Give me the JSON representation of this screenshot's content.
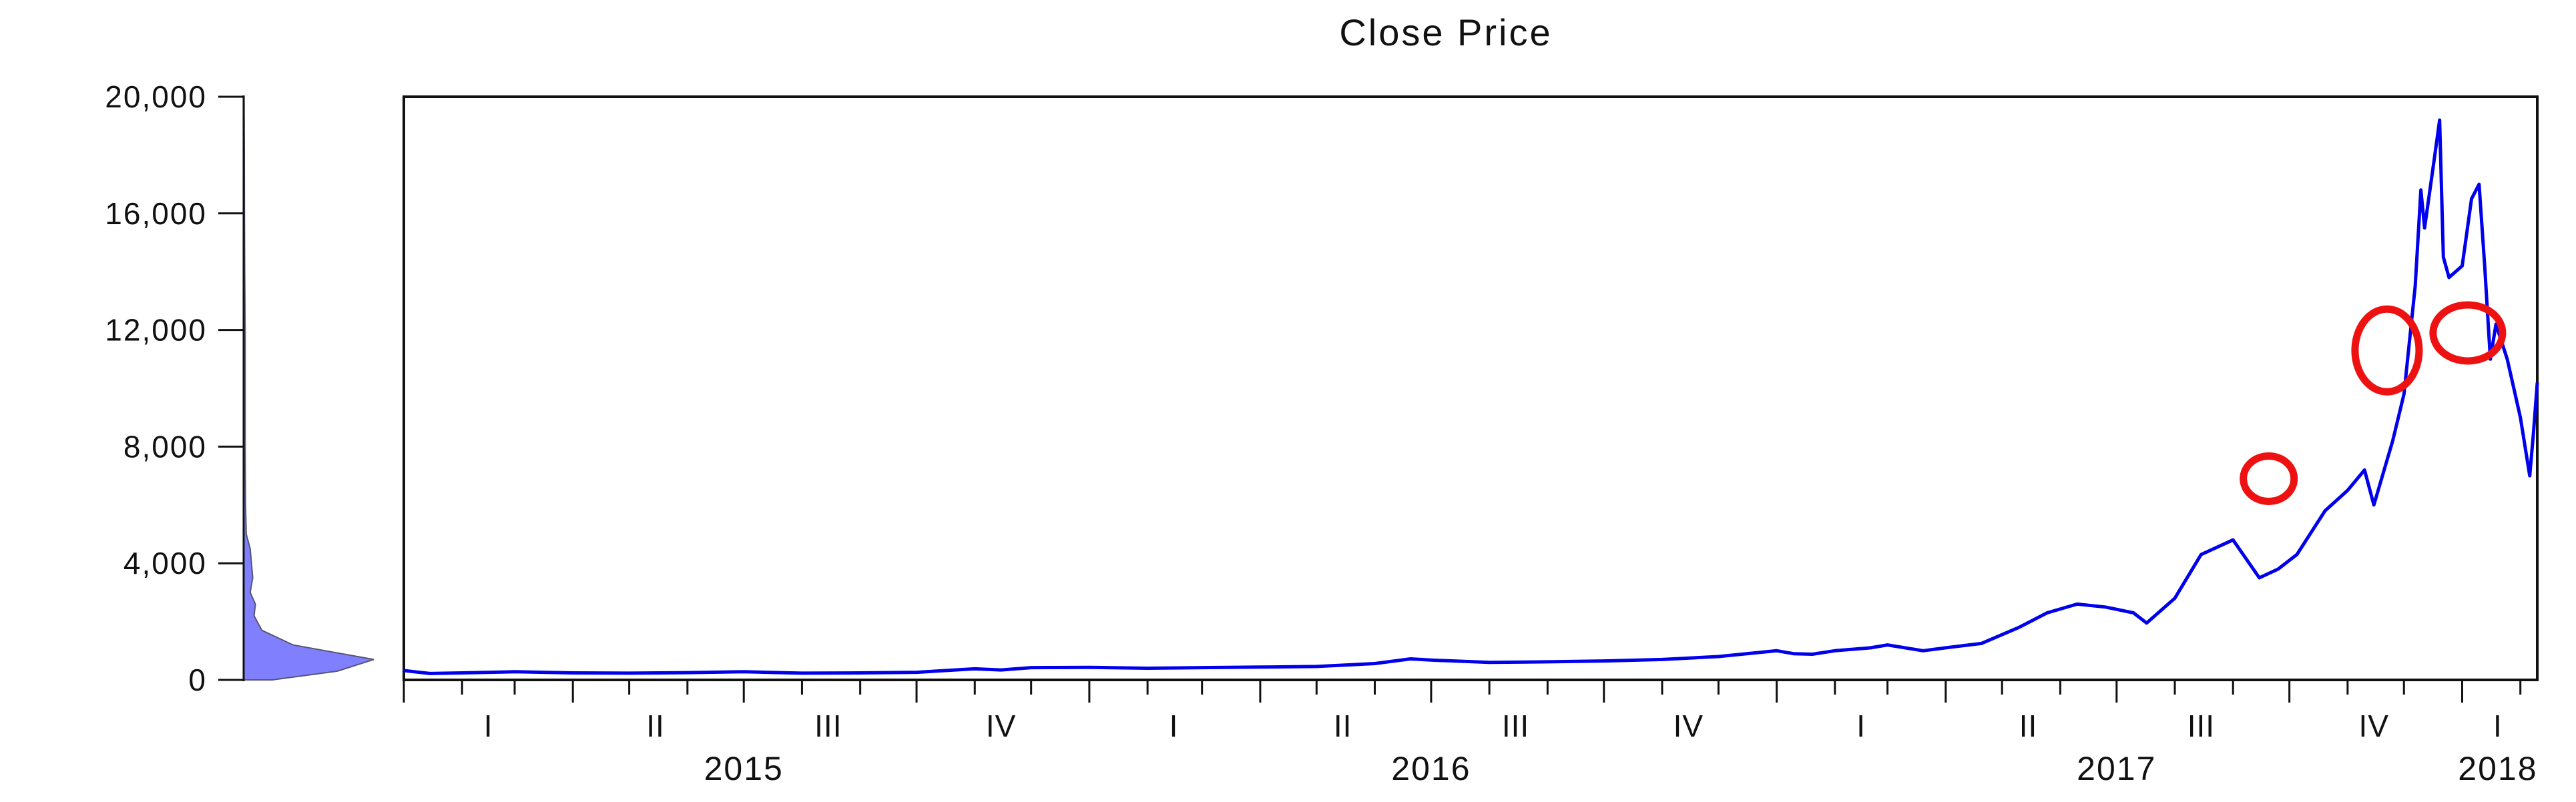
{
  "chart_data": {
    "type": "line",
    "title": "Close Price",
    "xlabel": "",
    "ylabel": "",
    "ylim": [
      0,
      20000
    ],
    "y_ticks": [
      {
        "value": 0,
        "label": "0"
      },
      {
        "value": 4000,
        "label": "4,000"
      },
      {
        "value": 8000,
        "label": "8,000"
      },
      {
        "value": 12000,
        "label": "12,000"
      },
      {
        "value": 16000,
        "label": "16,000"
      },
      {
        "value": 20000,
        "label": "20,000"
      }
    ],
    "xlim": [
      "2015-01-01",
      "2018-02-10"
    ],
    "quarter_labels": [
      {
        "label": "I",
        "date": "2015-02-15"
      },
      {
        "label": "II",
        "date": "2015-05-15"
      },
      {
        "label": "III",
        "date": "2015-08-15"
      },
      {
        "label": "IV",
        "date": "2015-11-15"
      },
      {
        "label": "I",
        "date": "2016-02-15"
      },
      {
        "label": "II",
        "date": "2016-05-15"
      },
      {
        "label": "III",
        "date": "2016-08-15"
      },
      {
        "label": "IV",
        "date": "2016-11-15"
      },
      {
        "label": "I",
        "date": "2017-02-15"
      },
      {
        "label": "II",
        "date": "2017-05-15"
      },
      {
        "label": "III",
        "date": "2017-08-15"
      },
      {
        "label": "IV",
        "date": "2017-11-15"
      },
      {
        "label": "I",
        "date": "2018-01-20"
      }
    ],
    "year_labels": [
      {
        "label": "2015",
        "date": "2015-07-01"
      },
      {
        "label": "2016",
        "date": "2016-07-01"
      },
      {
        "label": "2017",
        "date": "2017-07-01"
      },
      {
        "label": "2018",
        "date": "2018-01-20"
      }
    ],
    "grid": false,
    "legend": "none",
    "series": [
      {
        "color": "#0000ee",
        "x": [
          "2015-01-01",
          "2015-01-15",
          "2015-02-01",
          "2015-03-01",
          "2015-04-01",
          "2015-05-01",
          "2015-06-01",
          "2015-07-01",
          "2015-08-01",
          "2015-09-01",
          "2015-10-01",
          "2015-11-01",
          "2015-11-15",
          "2015-12-01",
          "2016-01-01",
          "2016-02-01",
          "2016-03-01",
          "2016-04-01",
          "2016-05-01",
          "2016-06-01",
          "2016-06-20",
          "2016-07-01",
          "2016-08-01",
          "2016-09-01",
          "2016-10-01",
          "2016-11-01",
          "2016-12-01",
          "2017-01-01",
          "2017-01-10",
          "2017-01-20",
          "2017-02-01",
          "2017-02-20",
          "2017-03-01",
          "2017-03-20",
          "2017-04-01",
          "2017-04-20",
          "2017-05-10",
          "2017-05-25",
          "2017-06-10",
          "2017-06-25",
          "2017-07-10",
          "2017-07-17",
          "2017-08-01",
          "2017-08-15",
          "2017-09-01",
          "2017-09-15",
          "2017-09-25",
          "2017-10-05",
          "2017-10-20",
          "2017-11-01",
          "2017-11-10",
          "2017-11-15",
          "2017-11-25",
          "2017-12-01",
          "2017-12-07",
          "2017-12-10",
          "2017-12-12",
          "2017-12-17",
          "2017-12-20",
          "2017-12-22",
          "2017-12-25",
          "2018-01-01",
          "2018-01-06",
          "2018-01-10",
          "2018-01-13",
          "2018-01-16",
          "2018-01-19",
          "2018-01-25",
          "2018-02-01",
          "2018-02-06",
          "2018-02-08",
          "2018-02-10"
        ],
        "y": [
          320,
          220,
          240,
          280,
          240,
          230,
          250,
          280,
          230,
          240,
          260,
          380,
          340,
          420,
          430,
          400,
          420,
          440,
          460,
          560,
          720,
          680,
          600,
          620,
          650,
          700,
          800,
          1000,
          900,
          880,
          1000,
          1100,
          1200,
          1000,
          1100,
          1250,
          1800,
          2300,
          2600,
          2500,
          2300,
          1950,
          2800,
          4300,
          4800,
          3500,
          3800,
          4300,
          5800,
          6500,
          7200,
          6000,
          8200,
          9800,
          13500,
          16800,
          15500,
          17800,
          19200,
          14500,
          13800,
          14200,
          16500,
          17000,
          14200,
          11000,
          12200,
          11000,
          9000,
          7000,
          8500,
          10200
        ]
      }
    ],
    "distribution": {
      "color": "#8080ff",
      "y": [
        0,
        300,
        700,
        1200,
        1700,
        2200,
        2600,
        3000,
        3500,
        4000,
        4500,
        5000,
        6000,
        8000,
        10000,
        12000,
        14000,
        16000,
        18000,
        20000
      ],
      "density": [
        0.22,
        0.72,
        1.0,
        0.38,
        0.14,
        0.08,
        0.09,
        0.05,
        0.07,
        0.06,
        0.05,
        0.02,
        0.015,
        0.012,
        0.012,
        0.012,
        0.008,
        0.006,
        0.005,
        0.003
      ]
    },
    "annotations": [
      {
        "shape": "ellipse",
        "color": "#ee1111",
        "x": "2017-09-20",
        "y": 6900
      },
      {
        "shape": "ellipse",
        "color": "#ee1111",
        "x": "2017-11-22",
        "y": 11300
      },
      {
        "shape": "ellipse",
        "color": "#ee1111",
        "x": "2018-01-04",
        "y": 11900
      }
    ]
  }
}
